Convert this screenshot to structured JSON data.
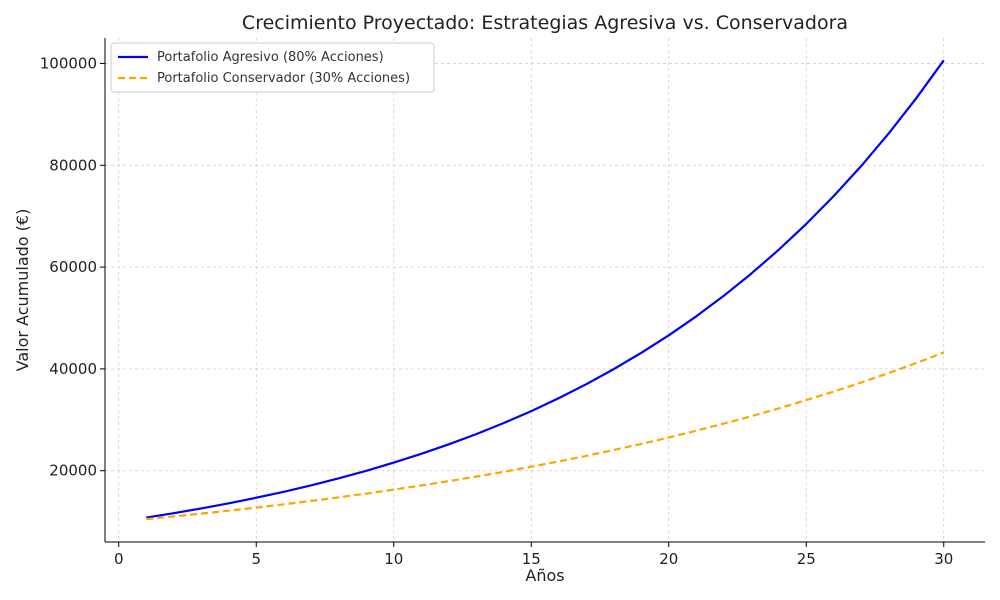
{
  "chart_data": {
    "type": "line",
    "title": "Crecimiento Proyectado: Estrategias Agresiva vs. Conservadora",
    "xlabel": "Años",
    "ylabel": "Valor Acumulado (€)",
    "xlim": [
      -0.5,
      31.5
    ],
    "ylim": [
      6000,
      105000
    ],
    "xticks": [
      0,
      5,
      10,
      15,
      20,
      25,
      30
    ],
    "yticks": [
      20000,
      40000,
      60000,
      80000,
      100000
    ],
    "grid": true,
    "legend_position": "top-left",
    "x": [
      1,
      2,
      3,
      4,
      5,
      6,
      7,
      8,
      9,
      10,
      11,
      12,
      13,
      14,
      15,
      16,
      17,
      18,
      19,
      20,
      21,
      22,
      23,
      24,
      25,
      26,
      27,
      28,
      29,
      30
    ],
    "series": [
      {
        "name": "Portafolio Agresivo (80% Acciones)",
        "color": "#0000ff",
        "style": "solid",
        "values": [
          10800,
          11664,
          12597,
          13605,
          14693,
          15869,
          17138,
          18509,
          19990,
          21589,
          23316,
          25182,
          27196,
          29372,
          31722,
          34259,
          37000,
          39960,
          43157,
          46610,
          50338,
          54365,
          58715,
          63412,
          68485,
          73964,
          79881,
          86271,
          93173,
          100627
        ]
      },
      {
        "name": "Portafolio Conservador (30% Acciones)",
        "color": "#ffa500",
        "style": "dashed",
        "values": [
          10500,
          11025,
          11576,
          12155,
          12763,
          13401,
          14071,
          14775,
          15513,
          16289,
          17103,
          17959,
          18856,
          19799,
          20789,
          21829,
          22920,
          24066,
          25270,
          26533,
          27860,
          29253,
          30715,
          32251,
          33864,
          35557,
          37335,
          39201,
          41161,
          43219
        ]
      }
    ]
  }
}
